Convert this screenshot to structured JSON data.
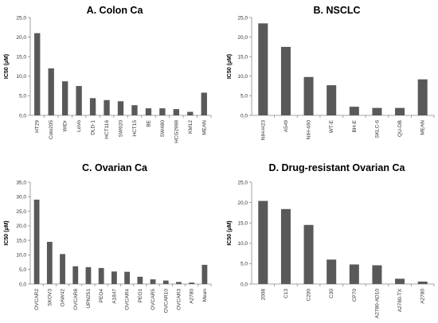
{
  "chart_data": [
    {
      "type": "bar",
      "title": "A. Colon  Ca",
      "ylabel": "IC50 (µM)",
      "xlabel": "",
      "ylim": [
        0,
        25
      ],
      "yticks": [
        "0,0",
        "5,0",
        "10,0",
        "15,0",
        "20,0",
        "25,0"
      ],
      "categories": [
        "HT29",
        "Colo205",
        "WiDr",
        "LoVo",
        "DLD-1",
        "HCT116",
        "SW620",
        "HCT15",
        "BE",
        "SW480",
        "HCG2998",
        "KM12",
        "MEAN"
      ],
      "values": [
        21.0,
        12.0,
        8.7,
        7.5,
        4.4,
        3.9,
        3.6,
        2.6,
        1.8,
        1.8,
        1.6,
        0.9,
        5.8
      ],
      "grid": false,
      "legend": "none",
      "bar_color": "#595959"
    },
    {
      "type": "bar",
      "title": "B. NSCLC",
      "ylabel": "IC50 (µM)",
      "xlabel": "",
      "ylim": [
        0,
        25
      ],
      "yticks": [
        "0,0",
        "5,0",
        "10,0",
        "15,0",
        "20,0",
        "25,0"
      ],
      "categories": [
        "NIH-H23",
        "A549",
        "NIH-460",
        "WT-E",
        "BH-E",
        "SKLC-6",
        "QU-DB",
        "MEAN"
      ],
      "values": [
        23.5,
        17.5,
        9.8,
        7.7,
        2.2,
        1.9,
        1.9,
        9.2
      ],
      "grid": false,
      "legend": "none",
      "bar_color": "#595959"
    },
    {
      "type": "bar",
      "title": "C. Ovarian Ca",
      "ylabel": "IC50 (µM)",
      "xlabel": "",
      "ylim": [
        0,
        35
      ],
      "yticks": [
        "0,0",
        "5,0",
        "10,0",
        "15,0",
        "20,0",
        "25,0",
        "30,0",
        "35,0"
      ],
      "categories": [
        "OVCAR2",
        "SKOV3",
        "OAW42",
        "OVCAR8",
        "UPN251",
        "PEO4",
        "A1847",
        "OVCAR4",
        "PEO1",
        "OVCAR5",
        "OVCAR10",
        "OVCAR3",
        "A2780",
        "Mean"
      ],
      "values": [
        29.0,
        14.5,
        10.3,
        6.1,
        5.8,
        5.5,
        4.3,
        4.2,
        2.5,
        1.6,
        1.2,
        0.7,
        0.5,
        6.6
      ],
      "grid": false,
      "legend": "none",
      "bar_color": "#595959"
    },
    {
      "type": "bar",
      "title": "D. Drug-resistant Ovarian Ca",
      "ylabel": "IC50 (µM)",
      "xlabel": "",
      "ylim": [
        0,
        25
      ],
      "yticks": [
        "0,0",
        "5,0",
        "10,0",
        "15,0",
        "20,0",
        "25,0"
      ],
      "categories": [
        "2008",
        "C13",
        "C200",
        "C30",
        "CP70",
        "A2780-AD10",
        "A2780-TX",
        "A2780"
      ],
      "values": [
        20.4,
        18.4,
        14.5,
        6.0,
        4.8,
        4.6,
        1.3,
        0.6
      ],
      "grid": false,
      "legend": "none",
      "bar_color": "#595959"
    }
  ]
}
